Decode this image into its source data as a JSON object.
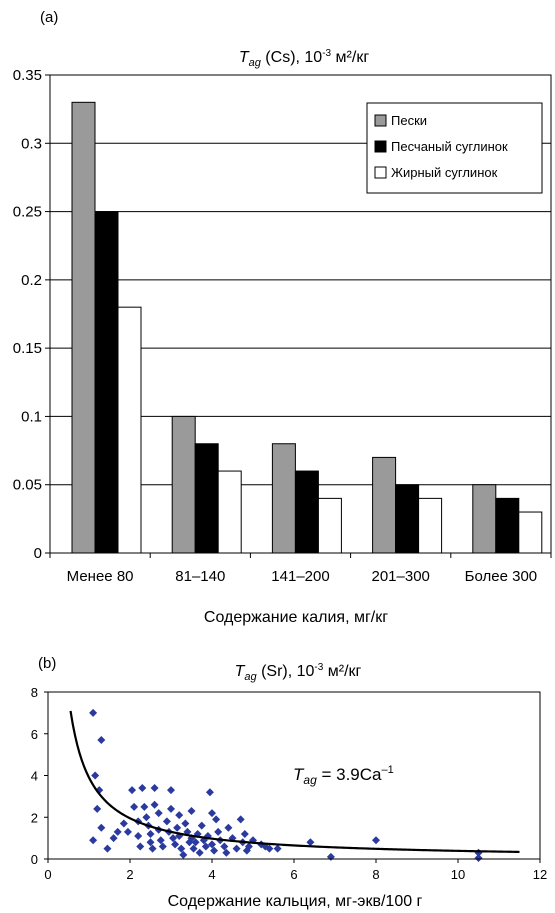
{
  "chart_data": [
    {
      "panel_label": "(a)",
      "type": "bar",
      "title": {
        "symbol": "T",
        "subscript": "ag",
        "rest": " (Cs),  10",
        "exponent": "-3",
        "unit": " м²/кг"
      },
      "xlabel": "Содержание калия, мг/кг",
      "ylabel": "",
      "ylim": [
        0,
        0.35
      ],
      "yticks": [
        "0",
        "0.05",
        "0.1",
        "0.15",
        "0.2",
        "0.25",
        "0.3",
        "0.35"
      ],
      "categories": [
        "Менее 80",
        "81–140",
        "141–200",
        "201–300",
        "Более 300"
      ],
      "series": [
        {
          "name": "Пески",
          "color": "#9a9a9a",
          "values": [
            0.33,
            0.1,
            0.08,
            0.07,
            0.05
          ]
        },
        {
          "name": "Песчаный суглинок",
          "color": "#000000",
          "values": [
            0.25,
            0.08,
            0.06,
            0.05,
            0.04
          ]
        },
        {
          "name": "Жирный суглинок",
          "color": "#ffffff",
          "values": [
            0.18,
            0.06,
            0.04,
            0.04,
            0.03
          ]
        }
      ],
      "grid": true,
      "legend": "top-right"
    },
    {
      "panel_label": "(b)",
      "type": "scatter",
      "title": {
        "symbol": "T",
        "subscript": "ag",
        "rest": " (Sr),  10",
        "exponent": "-3",
        "unit": " м²/кг"
      },
      "xlabel": "Содержание кальция, мг-экв/100 г",
      "ylabel": "",
      "xlim": [
        0,
        12
      ],
      "ylim": [
        0,
        8
      ],
      "xticks": [
        "0",
        "2",
        "4",
        "6",
        "8",
        "10",
        "12"
      ],
      "yticks": [
        "0",
        "2",
        "4",
        "6",
        "8"
      ],
      "point_color": "#2b3a9e",
      "annotation": {
        "symbol": "T",
        "subscript": "ag",
        "rest": " = 3.9Ca",
        "exponent": "–1"
      },
      "fit_curve": {
        "coefficient": 3.9,
        "power": -1,
        "x_range": [
          0.55,
          11.5
        ]
      },
      "points": [
        [
          1.1,
          7.0
        ],
        [
          1.3,
          5.7
        ],
        [
          1.15,
          4.0
        ],
        [
          1.25,
          3.3
        ],
        [
          1.2,
          2.4
        ],
        [
          1.3,
          1.5
        ],
        [
          1.1,
          0.9
        ],
        [
          1.45,
          0.5
        ],
        [
          1.6,
          1.0
        ],
        [
          1.7,
          1.3
        ],
        [
          1.85,
          1.7
        ],
        [
          1.95,
          1.3
        ],
        [
          2.05,
          3.3
        ],
        [
          2.1,
          2.5
        ],
        [
          2.2,
          1.8
        ],
        [
          2.2,
          1.1
        ],
        [
          2.25,
          0.6
        ],
        [
          2.3,
          3.4
        ],
        [
          2.35,
          2.5
        ],
        [
          2.4,
          2.0
        ],
        [
          2.45,
          1.6
        ],
        [
          2.5,
          1.2
        ],
        [
          2.5,
          0.8
        ],
        [
          2.55,
          0.5
        ],
        [
          2.6,
          3.4
        ],
        [
          2.6,
          2.6
        ],
        [
          2.7,
          2.2
        ],
        [
          2.7,
          1.4
        ],
        [
          2.75,
          0.9
        ],
        [
          2.8,
          0.6
        ],
        [
          2.9,
          1.8
        ],
        [
          2.95,
          1.3
        ],
        [
          3.0,
          3.3
        ],
        [
          3.0,
          2.4
        ],
        [
          3.05,
          1.0
        ],
        [
          3.1,
          0.7
        ],
        [
          3.15,
          1.5
        ],
        [
          3.2,
          2.1
        ],
        [
          3.2,
          1.1
        ],
        [
          3.25,
          0.5
        ],
        [
          3.3,
          0.2
        ],
        [
          3.35,
          1.7
        ],
        [
          3.4,
          1.3
        ],
        [
          3.45,
          0.8
        ],
        [
          3.5,
          2.3
        ],
        [
          3.5,
          1.0
        ],
        [
          3.55,
          0.5
        ],
        [
          3.6,
          0.8
        ],
        [
          3.65,
          1.2
        ],
        [
          3.7,
          0.3
        ],
        [
          3.75,
          1.6
        ],
        [
          3.8,
          0.9
        ],
        [
          3.85,
          0.6
        ],
        [
          3.9,
          1.1
        ],
        [
          3.95,
          3.2
        ],
        [
          4.0,
          2.2
        ],
        [
          4.0,
          0.7
        ],
        [
          4.05,
          0.4
        ],
        [
          4.1,
          1.9
        ],
        [
          4.15,
          1.3
        ],
        [
          4.2,
          0.9
        ],
        [
          4.3,
          0.6
        ],
        [
          4.35,
          0.3
        ],
        [
          4.4,
          1.5
        ],
        [
          4.5,
          1.0
        ],
        [
          4.6,
          0.5
        ],
        [
          4.7,
          1.9
        ],
        [
          4.75,
          0.8
        ],
        [
          4.8,
          1.2
        ],
        [
          4.85,
          0.4
        ],
        [
          4.9,
          0.6
        ],
        [
          5.0,
          0.9
        ],
        [
          5.2,
          0.7
        ],
        [
          5.3,
          0.6
        ],
        [
          5.4,
          0.5
        ],
        [
          5.6,
          0.5
        ],
        [
          6.4,
          0.8
        ],
        [
          6.9,
          0.1
        ],
        [
          8.0,
          0.9
        ],
        [
          10.5,
          0.3
        ],
        [
          10.5,
          0.05
        ]
      ]
    }
  ]
}
